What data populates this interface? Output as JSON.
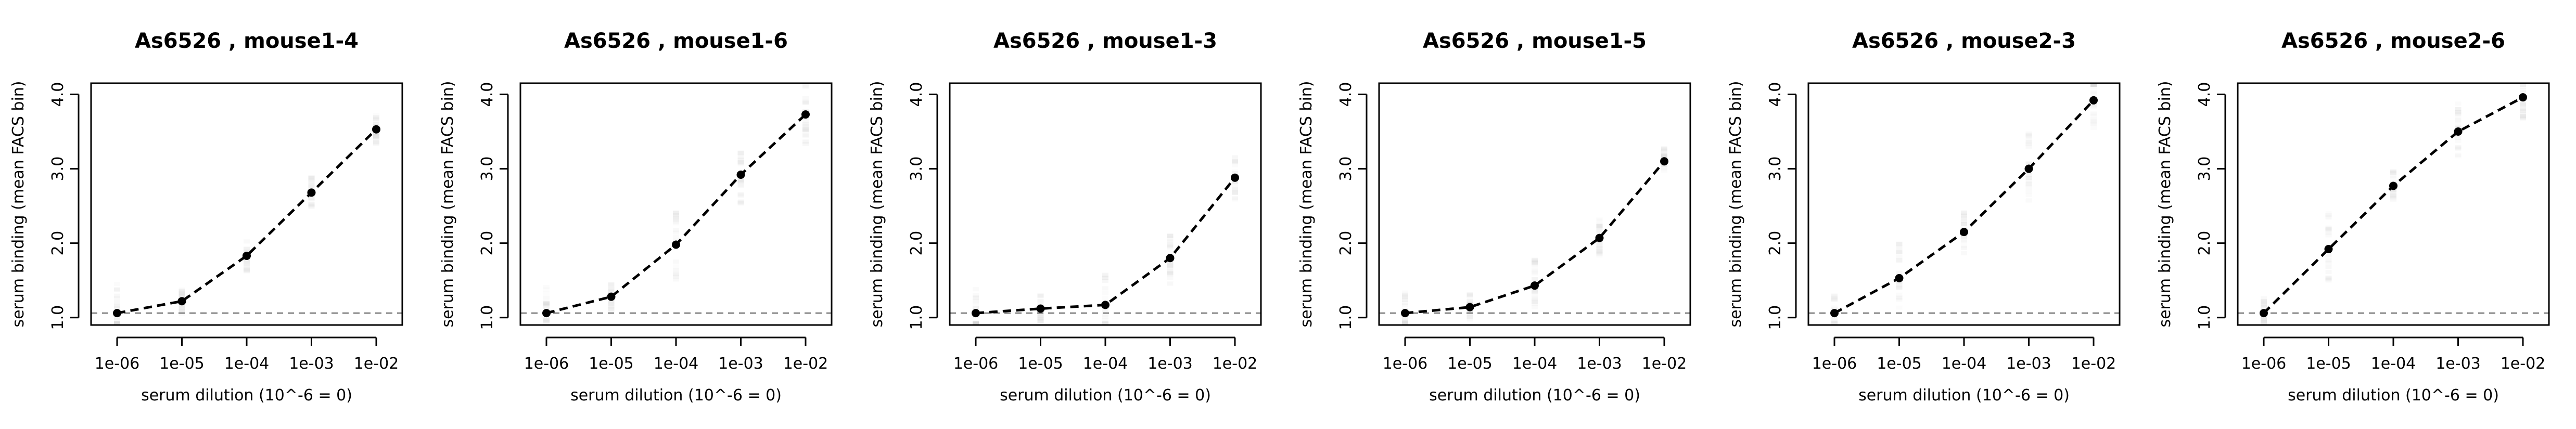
{
  "chart_data": [
    {
      "type": "line",
      "title": "As6526 , mouse1-4",
      "xlabel": "serum dilution (10^-6 = 0)",
      "ylabel": "serum binding (mean FACS bin)",
      "x": [
        1e-06,
        1e-05,
        0.0001,
        0.001,
        0.01
      ],
      "x_tick_labels": [
        "1e-06",
        "1e-05",
        "1e-04",
        "1e-03",
        "1e-02"
      ],
      "y_ticks": [
        "1.0",
        "2.0",
        "3.0",
        "4.0"
      ],
      "ylim": [
        0.9,
        4.15
      ],
      "x_scale": "log",
      "baseline": 1.06,
      "series": [
        {
          "values": [
            1.06,
            1.22,
            1.83,
            2.68,
            3.53
          ]
        }
      ]
    },
    {
      "type": "line",
      "title": "As6526 , mouse1-6",
      "xlabel": "serum dilution (10^-6 = 0)",
      "ylabel": "serum binding (mean FACS bin)",
      "x": [
        1e-06,
        1e-05,
        0.0001,
        0.001,
        0.01
      ],
      "x_tick_labels": [
        "1e-06",
        "1e-05",
        "1e-04",
        "1e-03",
        "1e-02"
      ],
      "y_ticks": [
        "1.0",
        "2.0",
        "3.0",
        "4.0"
      ],
      "ylim": [
        0.9,
        4.15
      ],
      "x_scale": "log",
      "baseline": 1.06,
      "series": [
        {
          "values": [
            1.06,
            1.28,
            1.98,
            2.92,
            3.73
          ]
        }
      ]
    },
    {
      "type": "line",
      "title": "As6526 , mouse1-3",
      "xlabel": "serum dilution (10^-6 = 0)",
      "ylabel": "serum binding (mean FACS bin)",
      "x": [
        1e-06,
        1e-05,
        0.0001,
        0.001,
        0.01
      ],
      "x_tick_labels": [
        "1e-06",
        "1e-05",
        "1e-04",
        "1e-03",
        "1e-02"
      ],
      "y_ticks": [
        "1.0",
        "2.0",
        "3.0",
        "4.0"
      ],
      "ylim": [
        0.9,
        4.15
      ],
      "x_scale": "log",
      "baseline": 1.06,
      "series": [
        {
          "values": [
            1.06,
            1.12,
            1.17,
            1.8,
            2.88
          ]
        }
      ]
    },
    {
      "type": "line",
      "title": "As6526 , mouse1-5",
      "xlabel": "serum dilution (10^-6 = 0)",
      "ylabel": "serum binding (mean FACS bin)",
      "x": [
        1e-06,
        1e-05,
        0.0001,
        0.001,
        0.01
      ],
      "x_tick_labels": [
        "1e-06",
        "1e-05",
        "1e-04",
        "1e-03",
        "1e-02"
      ],
      "y_ticks": [
        "1.0",
        "2.0",
        "3.0",
        "4.0"
      ],
      "ylim": [
        0.9,
        4.15
      ],
      "x_scale": "log",
      "baseline": 1.06,
      "series": [
        {
          "values": [
            1.06,
            1.14,
            1.43,
            2.07,
            3.1
          ]
        }
      ]
    },
    {
      "type": "line",
      "title": "As6526 , mouse2-3",
      "xlabel": "serum dilution (10^-6 = 0)",
      "ylabel": "serum binding (mean FACS bin)",
      "x": [
        1e-06,
        1e-05,
        0.0001,
        0.001,
        0.01
      ],
      "x_tick_labels": [
        "1e-06",
        "1e-05",
        "1e-04",
        "1e-03",
        "1e-02"
      ],
      "y_ticks": [
        "1.0",
        "2.0",
        "3.0",
        "4.0"
      ],
      "ylim": [
        0.9,
        4.15
      ],
      "x_scale": "log",
      "baseline": 1.06,
      "series": [
        {
          "values": [
            1.06,
            1.53,
            2.15,
            3.0,
            3.92
          ]
        }
      ]
    },
    {
      "type": "line",
      "title": "As6526 , mouse2-6",
      "xlabel": "serum dilution (10^-6 = 0)",
      "ylabel": "serum binding (mean FACS bin)",
      "x": [
        1e-06,
        1e-05,
        0.0001,
        0.001,
        0.01
      ],
      "x_tick_labels": [
        "1e-06",
        "1e-05",
        "1e-04",
        "1e-03",
        "1e-02"
      ],
      "y_ticks": [
        "1.0",
        "2.0",
        "3.0",
        "4.0"
      ],
      "ylim": [
        0.9,
        4.15
      ],
      "x_scale": "log",
      "baseline": 1.06,
      "series": [
        {
          "values": [
            1.06,
            1.92,
            2.77,
            3.5,
            3.96
          ]
        }
      ]
    }
  ],
  "colors": {
    "line": "#000000",
    "baseline": "#888888",
    "points": "#000000",
    "cloud": "#c8c8c8"
  }
}
